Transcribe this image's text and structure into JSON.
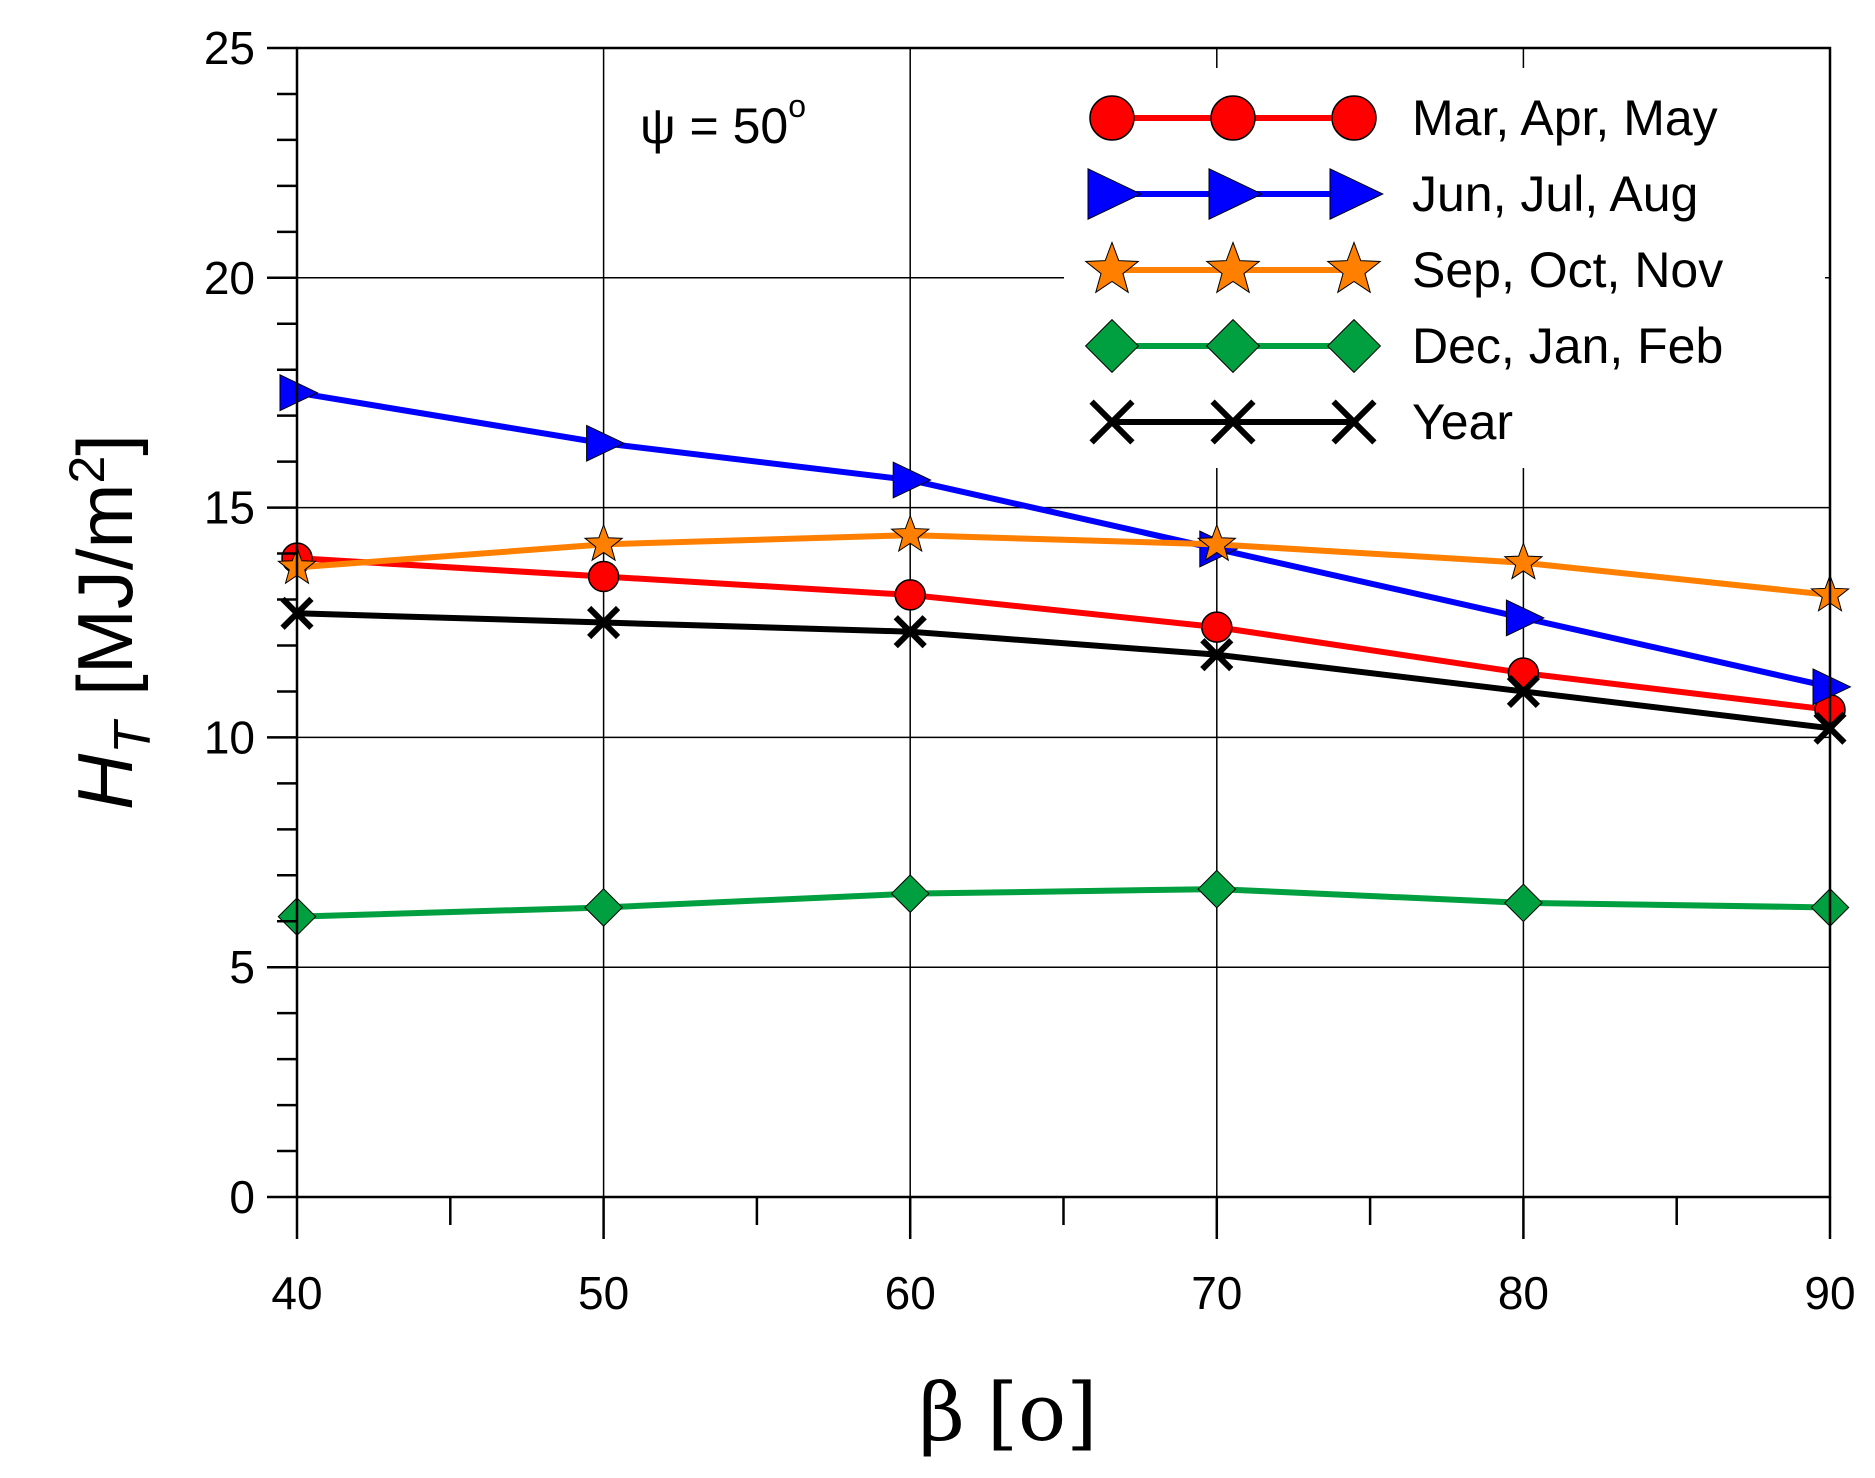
{
  "chart_data": {
    "type": "line",
    "x": [
      40,
      50,
      60,
      70,
      80,
      90
    ],
    "xlabel": {
      "symbol": "β",
      "unit": "[o]"
    },
    "ylabel": {
      "symbol": "H",
      "subscript": "T",
      "unit_main": "[MJ/m",
      "unit_sup": "2",
      "unit_close": "]"
    },
    "xlim": [
      40,
      90
    ],
    "ylim": [
      0,
      25
    ],
    "x_ticks": [
      "40",
      "50",
      "60",
      "70",
      "80",
      "90"
    ],
    "y_ticks": [
      "0",
      "5",
      "10",
      "15",
      "20",
      "25"
    ],
    "grid": true,
    "legend_position": "top-right",
    "annotation": {
      "main": "ψ = 50",
      "sup": "o"
    },
    "series": [
      {
        "name": "Mar, Apr, May",
        "color": "#ff0000",
        "marker": "circle",
        "marker_fill": "#ff0000",
        "values": [
          13.9,
          13.5,
          13.1,
          12.4,
          11.4,
          10.6
        ]
      },
      {
        "name": "Jun, Jul, Aug",
        "color": "#0000ff",
        "marker": "triangle-right",
        "marker_fill": "#0000ff",
        "values": [
          17.5,
          16.4,
          15.6,
          14.1,
          12.6,
          11.1
        ]
      },
      {
        "name": "Sep, Oct, Nov",
        "color": "#ff8000",
        "marker": "star",
        "marker_fill": "#ff8000",
        "values": [
          13.7,
          14.2,
          14.4,
          14.2,
          13.8,
          13.1
        ]
      },
      {
        "name": "Dec, Jan, Feb",
        "color": "#00a040",
        "marker": "diamond",
        "marker_fill": "#00a040",
        "values": [
          6.1,
          6.3,
          6.6,
          6.7,
          6.4,
          6.3
        ]
      },
      {
        "name": "Year",
        "color": "#000000",
        "marker": "x",
        "marker_fill": "#000000",
        "values": [
          12.7,
          12.5,
          12.3,
          11.8,
          11.0,
          10.2
        ]
      }
    ]
  }
}
